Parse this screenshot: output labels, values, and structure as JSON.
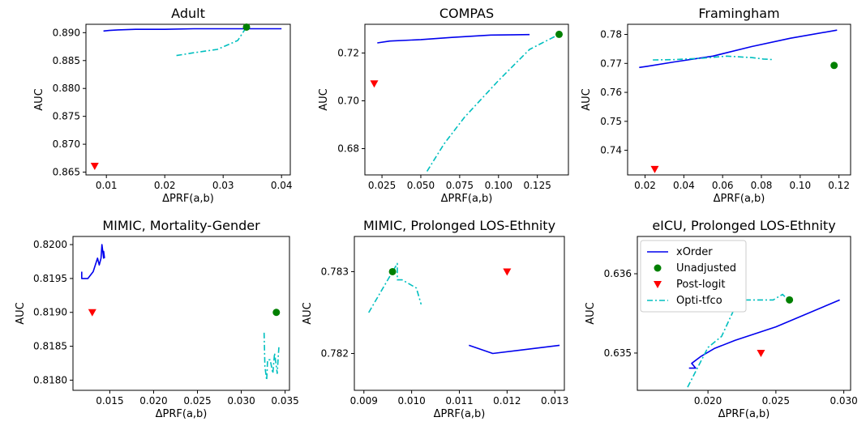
{
  "chart_data": [
    {
      "type": "scatter",
      "title": "Adult",
      "xlabel": "ΔPRF(a,b)",
      "ylabel": "AUC",
      "xlim": [
        0.0065,
        0.0415
      ],
      "ylim": [
        0.8645,
        0.8915
      ],
      "xticks": [
        0.01,
        0.02,
        0.03,
        0.04
      ],
      "xtick_labels": [
        "0.01",
        "0.02",
        "0.03",
        "0.04"
      ],
      "yticks": [
        0.865,
        0.87,
        0.875,
        0.88,
        0.885,
        0.89
      ],
      "ytick_labels": [
        "0.865",
        "0.870",
        "0.875",
        "0.880",
        "0.885",
        "0.890"
      ],
      "series": [
        {
          "name": "xOrder",
          "kind": "line",
          "color": "#0000ee",
          "dash": "solid",
          "x": [
            0.0095,
            0.0105,
            0.012,
            0.015,
            0.02,
            0.025,
            0.03,
            0.035,
            0.04
          ],
          "y": [
            0.8903,
            0.8904,
            0.8905,
            0.8906,
            0.8906,
            0.8907,
            0.8907,
            0.8907,
            0.8907
          ]
        },
        {
          "name": "Unadjusted",
          "kind": "marker",
          "marker": "circle",
          "color": "#008000",
          "x": [
            0.034
          ],
          "y": [
            0.891
          ]
        },
        {
          "name": "Post-logit",
          "kind": "marker",
          "marker": "triangle-down",
          "color": "#ff0000",
          "x": [
            0.008
          ],
          "y": [
            0.8661
          ]
        },
        {
          "name": "Opti-tfco",
          "kind": "line",
          "color": "#00bfbf",
          "dash": "dashdot",
          "x": [
            0.022,
            0.025,
            0.029,
            0.0325,
            0.034
          ],
          "y": [
            0.8859,
            0.8864,
            0.887,
            0.8886,
            0.891
          ]
        }
      ]
    },
    {
      "type": "scatter",
      "title": "COMPAS",
      "xlabel": "ΔPRF(a,b)",
      "ylabel": "AUC",
      "xlim": [
        0.014,
        0.145
      ],
      "ylim": [
        0.669,
        0.732
      ],
      "xticks": [
        0.025,
        0.05,
        0.075,
        0.1,
        0.125
      ],
      "xtick_labels": [
        "0.025",
        "0.050",
        "0.075",
        "0.100",
        "0.125"
      ],
      "yticks": [
        0.68,
        0.7,
        0.72
      ],
      "ytick_labels": [
        "0.68",
        "0.70",
        "0.72"
      ],
      "series": [
        {
          "name": "xOrder",
          "kind": "line",
          "color": "#0000ee",
          "dash": "solid",
          "x": [
            0.022,
            0.03,
            0.05,
            0.07,
            0.095,
            0.12
          ],
          "y": [
            0.7242,
            0.725,
            0.7256,
            0.7265,
            0.7275,
            0.7277
          ]
        },
        {
          "name": "Unadjusted",
          "kind": "marker",
          "marker": "circle",
          "color": "#008000",
          "x": [
            0.139
          ],
          "y": [
            0.7278
          ]
        },
        {
          "name": "Post-logit",
          "kind": "marker",
          "marker": "triangle-down",
          "color": "#ff0000",
          "x": [
            0.02
          ],
          "y": [
            0.7072
          ]
        },
        {
          "name": "Opti-tfco",
          "kind": "line",
          "color": "#00bfbf",
          "dash": "dashdot",
          "x": [
            0.054,
            0.065,
            0.078,
            0.1,
            0.12,
            0.139
          ],
          "y": [
            0.6705,
            0.682,
            0.693,
            0.7085,
            0.7215,
            0.7278
          ]
        }
      ]
    },
    {
      "type": "scatter",
      "title": "Framingham",
      "xlabel": "ΔPRF(a,b)",
      "ylabel": "AUC",
      "xlim": [
        0.011,
        0.126
      ],
      "ylim": [
        0.7315,
        0.7835
      ],
      "xticks": [
        0.02,
        0.04,
        0.06,
        0.08,
        0.1,
        0.12
      ],
      "xtick_labels": [
        "0.02",
        "0.04",
        "0.06",
        "0.08",
        "0.10",
        "0.12"
      ],
      "yticks": [
        0.74,
        0.75,
        0.76,
        0.77,
        0.78
      ],
      "ytick_labels": [
        "0.74",
        "0.75",
        "0.76",
        "0.77",
        "0.78"
      ],
      "series": [
        {
          "name": "xOrder",
          "kind": "line",
          "color": "#0000ee",
          "dash": "solid",
          "x": [
            0.017,
            0.021,
            0.035,
            0.055,
            0.075,
            0.095,
            0.119
          ],
          "y": [
            0.7686,
            0.769,
            0.7705,
            0.7725,
            0.7758,
            0.7787,
            0.7815
          ]
        },
        {
          "name": "Unadjusted",
          "kind": "marker",
          "marker": "circle",
          "color": "#008000",
          "x": [
            0.1175
          ],
          "y": [
            0.7693
          ]
        },
        {
          "name": "Post-logit",
          "kind": "marker",
          "marker": "triangle-down",
          "color": "#ff0000",
          "x": [
            0.025
          ],
          "y": [
            0.7335
          ]
        },
        {
          "name": "Opti-tfco",
          "kind": "line",
          "color": "#00bfbf",
          "dash": "dashdot",
          "x": [
            0.024,
            0.035,
            0.05,
            0.062,
            0.075,
            0.081,
            0.086
          ],
          "y": [
            0.7712,
            0.7713,
            0.7718,
            0.7725,
            0.772,
            0.7715,
            0.7713
          ]
        }
      ]
    },
    {
      "type": "scatter",
      "title": "MIMIC, Mortality-Gender",
      "xlabel": "ΔPRF(a,b)",
      "ylabel": "AUC",
      "xlim": [
        0.0108,
        0.0355
      ],
      "ylim": [
        0.81785,
        0.82012
      ],
      "xticks": [
        0.015,
        0.02,
        0.025,
        0.03,
        0.035
      ],
      "xtick_labels": [
        "0.015",
        "0.020",
        "0.025",
        "0.030",
        "0.035"
      ],
      "yticks": [
        0.818,
        0.8185,
        0.819,
        0.8195,
        0.82
      ],
      "ytick_labels": [
        "0.8180",
        "0.8185",
        "0.8190",
        "0.8195",
        "0.8200"
      ],
      "series": [
        {
          "name": "xOrder",
          "kind": "line",
          "color": "#0000ee",
          "dash": "solid",
          "x": [
            0.0118,
            0.0118,
            0.0125,
            0.0131,
            0.0136,
            0.0138,
            0.014,
            0.0141,
            0.0143,
            0.0143,
            0.0144
          ],
          "y": [
            0.8196,
            0.8195,
            0.8195,
            0.8196,
            0.8198,
            0.8197,
            0.8198,
            0.82,
            0.8198,
            0.8199,
            0.8198
          ]
        },
        {
          "name": "Unadjusted",
          "kind": "marker",
          "marker": "circle",
          "color": "#008000",
          "x": [
            0.034
          ],
          "y": [
            0.819
          ]
        },
        {
          "name": "Post-logit",
          "kind": "marker",
          "marker": "triangle-down",
          "color": "#ff0000",
          "x": [
            0.013
          ],
          "y": [
            0.819
          ]
        },
        {
          "name": "Opti-tfco",
          "kind": "line",
          "color": "#00bfbf",
          "dash": "dashdot",
          "x": [
            0.0326,
            0.0327,
            0.0329,
            0.033,
            0.0333,
            0.0336,
            0.0338,
            0.034,
            0.0341,
            0.0342,
            0.0343
          ],
          "y": [
            0.8187,
            0.8182,
            0.818,
            0.8183,
            0.8183,
            0.8181,
            0.8184,
            0.8182,
            0.8181,
            0.8183,
            0.8185
          ]
        }
      ]
    },
    {
      "type": "scatter",
      "title": "MIMIC, Prolonged LOS-Ethnity",
      "xlabel": "ΔPRF(a,b)",
      "ylabel": "AUC",
      "xlim": [
        0.0088,
        0.0132
      ],
      "ylim": [
        0.78155,
        0.78343
      ],
      "xticks": [
        0.009,
        0.01,
        0.011,
        0.012,
        0.013
      ],
      "xtick_labels": [
        "0.009",
        "0.010",
        "0.011",
        "0.012",
        "0.013"
      ],
      "yticks": [
        0.782,
        0.783
      ],
      "ytick_labels": [
        "0.782",
        "0.783"
      ],
      "series": [
        {
          "name": "xOrder",
          "kind": "line",
          "color": "#0000ee",
          "dash": "solid",
          "x": [
            0.0112,
            0.0117,
            0.0131
          ],
          "y": [
            0.7821,
            0.782,
            0.7821
          ]
        },
        {
          "name": "Unadjusted",
          "kind": "marker",
          "marker": "circle",
          "color": "#008000",
          "x": [
            0.0096
          ],
          "y": [
            0.783
          ]
        },
        {
          "name": "Post-logit",
          "kind": "marker",
          "marker": "triangle-down",
          "color": "#ff0000",
          "x": [
            0.012
          ],
          "y": [
            0.783
          ]
        },
        {
          "name": "Opti-tfco",
          "kind": "line",
          "color": "#00bfbf",
          "dash": "dashdot",
          "x": [
            0.0091,
            0.0095,
            0.0097,
            0.0097,
            0.0098,
            0.0101,
            0.0102
          ],
          "y": [
            0.7825,
            0.7829,
            0.7831,
            0.7829,
            0.7829,
            0.7828,
            0.7826
          ]
        }
      ]
    },
    {
      "type": "scatter",
      "title": "eICU, Prolonged LOS-Ethnity",
      "xlabel": "ΔPRF(a,b)",
      "ylabel": "AUC",
      "xlim": [
        0.0148,
        0.0305
      ],
      "ylim": [
        0.63453,
        0.63647
      ],
      "xticks": [
        0.02,
        0.025,
        0.03
      ],
      "xtick_labels": [
        "0.020",
        "0.025",
        "0.030"
      ],
      "yticks": [
        0.635,
        0.636
      ],
      "ytick_labels": [
        "0.635",
        "0.636"
      ],
      "series": [
        {
          "name": "xOrder",
          "kind": "line",
          "color": "#0000ee",
          "dash": "solid",
          "x": [
            0.0186,
            0.0191,
            0.0188,
            0.0195,
            0.0205,
            0.022,
            0.025,
            0.0297
          ],
          "y": [
            0.63481,
            0.63481,
            0.63487,
            0.63496,
            0.63506,
            0.63516,
            0.63533,
            0.63567
          ]
        },
        {
          "name": "Unadjusted",
          "kind": "marker",
          "marker": "circle",
          "color": "#008000",
          "x": [
            0.026
          ],
          "y": [
            0.63567
          ]
        },
        {
          "name": "Post-logit",
          "kind": "marker",
          "marker": "triangle-down",
          "color": "#ff0000",
          "x": [
            0.0239
          ],
          "y": [
            0.635
          ]
        },
        {
          "name": "Opti-tfco",
          "kind": "line",
          "color": "#00bfbf",
          "dash": "dashdot",
          "x": [
            0.0185,
            0.02,
            0.021,
            0.022,
            0.0222,
            0.0235,
            0.0248,
            0.0255,
            0.0259
          ],
          "y": [
            0.63457,
            0.63507,
            0.63521,
            0.63558,
            0.63567,
            0.63567,
            0.63567,
            0.63574,
            0.63567
          ]
        }
      ],
      "legend": {
        "placement": "upper-left",
        "entries": [
          "xOrder",
          "Unadjusted",
          "Post-logit",
          "Opti-tfco"
        ]
      }
    }
  ]
}
